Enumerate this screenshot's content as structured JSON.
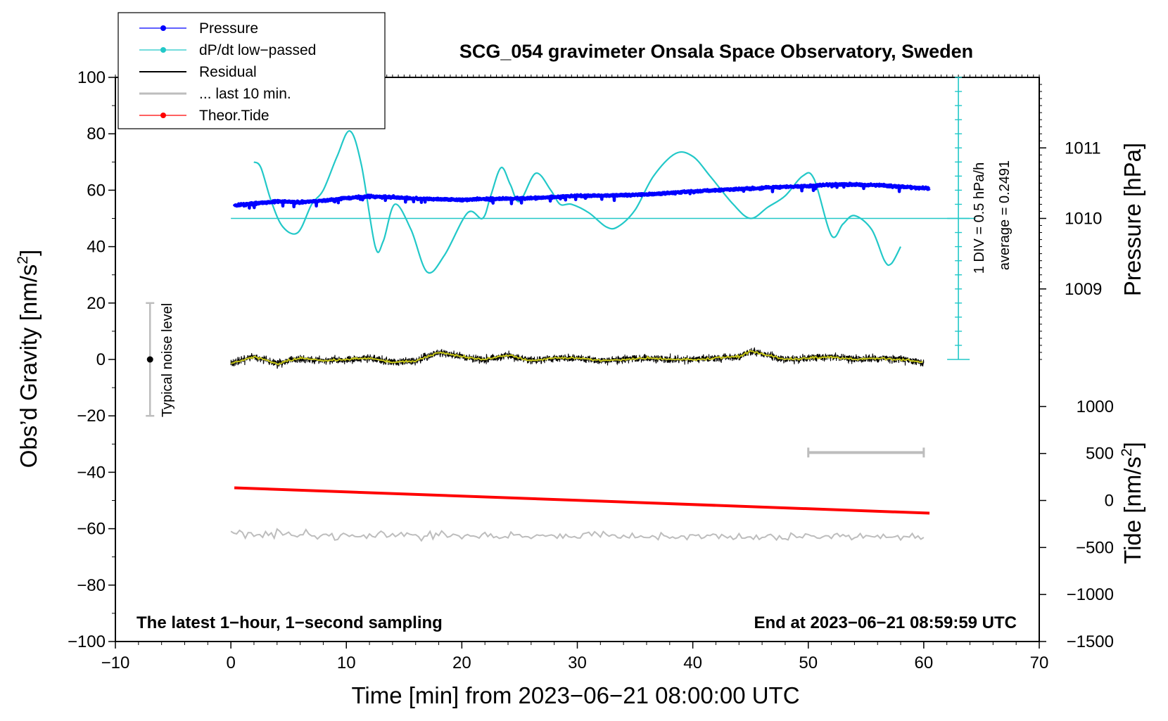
{
  "chart_data": {
    "type": "line",
    "title": "SCG_054 gravimeter Onsala Space Observatory, Sweden",
    "xlabel": "Time [min] from 2023−06−21 08:00:00 UTC",
    "ylabel_left": "Obs’d Gravity [nm/s²]",
    "ylabel_left_main": "Obs’d Gravity [nm/s",
    "ylabel_left_sup": "2",
    "ylabel_left_end": "]",
    "ylabel_right_pressure": "Pressure [hPa]",
    "ylabel_right_tide": "Tide [nm/s²]",
    "ylabel_right_tide_main": "Tide [nm/s",
    "ylabel_right_tide_sup": "2",
    "ylabel_right_tide_end": "]",
    "xlim": [
      -10,
      70
    ],
    "ylim": [
      -100,
      100
    ],
    "x_ticks": [
      -10,
      0,
      10,
      20,
      30,
      40,
      50,
      60,
      70
    ],
    "x_tick_labels": [
      "−10",
      "0",
      "10",
      "20",
      "30",
      "40",
      "50",
      "60",
      "70"
    ],
    "y_ticks": [
      -100,
      -80,
      -60,
      -40,
      -20,
      0,
      20,
      40,
      60,
      80,
      100
    ],
    "y_tick_labels": [
      "−100",
      "−80",
      "−60",
      "−40",
      "−20",
      "0",
      "20",
      "40",
      "60",
      "80",
      "100"
    ],
    "pressure_axis": {
      "ticks": [
        1009,
        1010,
        1011
      ],
      "tick_labels": [
        "1009",
        "1010",
        "1011"
      ],
      "gravity_at_1010": 50,
      "gravity_per_hPa": 25
    },
    "tide_axis": {
      "ticks": [
        -1500,
        -1000,
        -500,
        0,
        500,
        1000
      ],
      "tick_labels": [
        "−1500",
        "−1000",
        "−500",
        "0",
        "500",
        "1000"
      ],
      "gravity_at_zero": -50,
      "gravity_per_unit": 0.03333
    },
    "legend": [
      {
        "label": "Pressure",
        "color": "#0000ff",
        "marker": "dot"
      },
      {
        "label": "dP/dt low−passed",
        "color": "#22c8c8",
        "marker": "dot"
      },
      {
        "label": "Residual",
        "color": "#000000",
        "marker": "none"
      },
      {
        "label": "... last 10 min.",
        "color": "#bdbdbd",
        "marker": "none"
      },
      {
        "label": "Theor.Tide",
        "color": "#ff0000",
        "marker": "dot"
      }
    ],
    "series": [
      {
        "name": "Pressure",
        "color": "#0000ff",
        "x": [
          0.3,
          2,
          4,
          6,
          8,
          10,
          12,
          14,
          16,
          18,
          20,
          22,
          24,
          26,
          28,
          30,
          32,
          34,
          36,
          38,
          40,
          42,
          44,
          46,
          48,
          50,
          52,
          54,
          56,
          58,
          60.5
        ],
        "values": [
          54.5,
          55.3,
          56.0,
          55.7,
          56.3,
          57.2,
          57.8,
          57.5,
          57.0,
          56.8,
          56.6,
          56.9,
          57.0,
          57.2,
          57.6,
          58.0,
          58.1,
          58.3,
          58.5,
          59.0,
          59.6,
          60.0,
          60.5,
          60.8,
          61.2,
          61.5,
          62.0,
          62.0,
          61.8,
          61.2,
          60.6
        ]
      },
      {
        "name": "dP/dt low-passed",
        "color": "#22c8c8",
        "x": [
          2,
          2.6,
          3.5,
          4.5,
          5.8,
          7,
          8,
          9.2,
          10.3,
          11.3,
          12.5,
          13.2,
          14.2,
          15.6,
          17,
          18.5,
          20.5,
          21.8,
          22.5,
          23.4,
          24.2,
          25,
          26.4,
          27.7,
          28.5,
          29.5,
          31,
          32.5,
          33.5,
          35,
          36.6,
          38.5,
          40,
          41.5,
          43.5,
          45,
          46.5,
          48,
          49.5,
          50.5,
          52,
          53,
          54,
          55.5,
          56.6,
          57.2,
          58
        ],
        "values": [
          70,
          68,
          56,
          47,
          45,
          55,
          60,
          72,
          81,
          69,
          40,
          42,
          55,
          46,
          31,
          37,
          52,
          50,
          58,
          68,
          62,
          56,
          66,
          60,
          55,
          55,
          52,
          47,
          47,
          53,
          65,
          73,
          72,
          65,
          55,
          50,
          54,
          58,
          65,
          64,
          44,
          48,
          51,
          46,
          35,
          34,
          40
        ]
      },
      {
        "name": "Residual",
        "color": "#000000",
        "smooth_color": "#c8c819",
        "x": [
          0,
          2,
          4,
          6,
          8,
          10,
          12,
          14,
          16,
          18,
          20,
          22,
          24,
          26,
          28,
          30,
          32,
          34,
          36,
          38,
          40,
          42,
          44,
          45,
          46,
          48,
          50,
          52,
          54,
          56,
          58,
          60
        ],
        "values": [
          -1.5,
          1.0,
          -1.5,
          0.5,
          -0.5,
          0.0,
          0.5,
          -1.0,
          -0.5,
          2.5,
          1.0,
          0.0,
          1.5,
          -0.5,
          0.5,
          0.5,
          -0.5,
          0.0,
          0.5,
          0.0,
          0.0,
          0.5,
          1.0,
          3.0,
          2.0,
          0.0,
          0.5,
          1.0,
          0.0,
          0.5,
          0.0,
          -1.0
        ]
      },
      {
        "name": "... last 10 min.",
        "color": "#bdbdbd",
        "x": [
          0,
          60
        ],
        "values": [
          -62,
          -63
        ]
      },
      {
        "name": "Theor.Tide",
        "color": "#ff0000",
        "x": [
          0.3,
          60.5
        ],
        "values": [
          -45.5,
          -54.5
        ]
      }
    ],
    "dpdt_zero_line": 50,
    "dpdt_scale_bar": {
      "x": 63,
      "y_from": 0,
      "y_to": 100,
      "ticks_every": 5
    },
    "noise_bar": {
      "x": -7,
      "y_center": 0,
      "y_from": -20,
      "y_to": 20,
      "label": "Typical noise level"
    },
    "range_bar": {
      "x_from": 50,
      "x_to": 60,
      "y": -33
    },
    "annotations": {
      "div_text": "1 DIV = 0.5 hPa/h",
      "average_text": "average = 0.2491",
      "bottom_left": "The latest 1−hour, 1−second sampling",
      "bottom_right": "End at 2023−06−21 08:59:59 UTC"
    }
  }
}
